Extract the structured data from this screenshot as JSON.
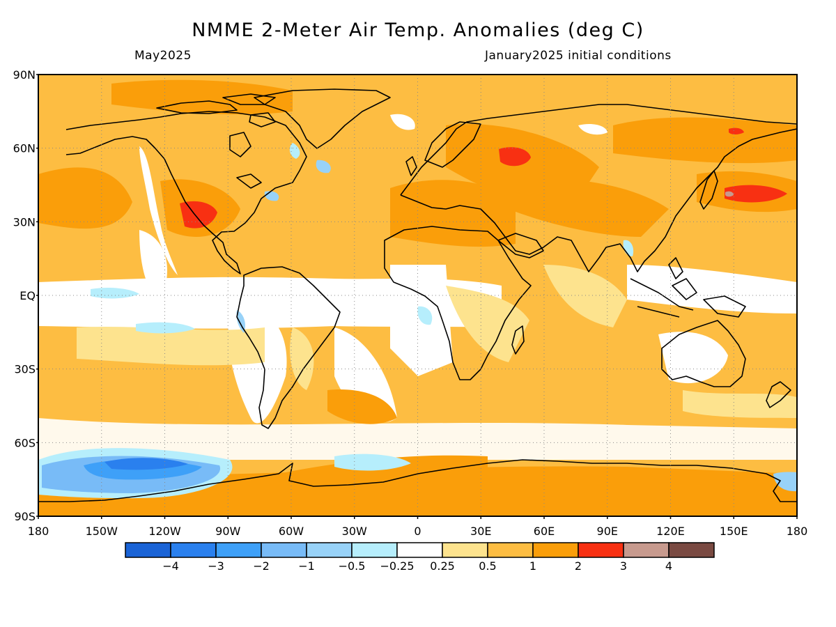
{
  "title": "NMME 2-Meter Air Temp. Anomalies (deg C)",
  "valid_month": "May2025",
  "init_conditions": "January2025 initial conditions",
  "map": {
    "projection": "cylindrical equidistant",
    "lon_range": [
      -180,
      180
    ],
    "lat_range": [
      -90,
      90
    ],
    "grid": "dotted, every 30 degrees",
    "lat_labels": [
      "90N",
      "60N",
      "30N",
      "EQ",
      "30S",
      "60S",
      "90S"
    ],
    "lon_labels": [
      "180",
      "150W",
      "120W",
      "90W",
      "60W",
      "30W",
      "0",
      "30E",
      "60E",
      "90E",
      "120E",
      "150E",
      "180"
    ],
    "background_color": "#ffffff"
  },
  "legend": {
    "colors": [
      "#1a63d6",
      "#2a80ee",
      "#3ea0f8",
      "#78bbf7",
      "#98d2f8",
      "#b6eefc",
      "#ffffff",
      "#fde38e",
      "#fdbd42",
      "#fa9e0a",
      "#f83012",
      "#c79a8e",
      "#7a4a42"
    ],
    "labels": [
      "−4",
      "−3",
      "−2",
      "−1",
      "−0.5",
      "−0.25",
      "0.25",
      "0.5",
      "1",
      "2",
      "3",
      "4"
    ]
  }
}
